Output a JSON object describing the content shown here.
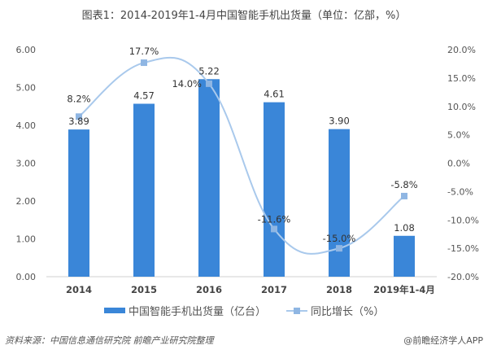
{
  "title": "图表1：2014-2019年1-4月中国智能手机出货量（单位：亿部，%）",
  "source": "资料来源：中国信息通信研究院 前瞻产业研究院整理",
  "credit": "@前瞻经济学人APP",
  "colors": {
    "bar": "#3a86d8",
    "line": "#a9c9ec",
    "marker": "#8fb6e3"
  },
  "chart_data": {
    "type": "bar+line",
    "categories": [
      "2014",
      "2015",
      "2016",
      "2017",
      "2018",
      "2019年1-4月"
    ],
    "series": [
      {
        "name": "中国智能手机出货量（亿台）",
        "type": "bar",
        "axis": "left",
        "values": [
          3.89,
          4.57,
          5.22,
          4.61,
          3.9,
          1.08
        ],
        "labels": [
          "3.89",
          "4.57",
          "5.22",
          "4.61",
          "3.90",
          "1.08"
        ]
      },
      {
        "name": "同比增长（%）",
        "type": "line",
        "axis": "right",
        "smooth": true,
        "values": [
          8.2,
          17.7,
          14.0,
          -11.6,
          -15.0,
          -5.8
        ],
        "labels": [
          "8.2%",
          "17.7%",
          "14.0%",
          "-11.6%",
          "-15.0%",
          "-5.8%"
        ]
      }
    ],
    "y_left": {
      "range": [
        0,
        6
      ],
      "ticks": [
        "0.00",
        "1.00",
        "2.00",
        "3.00",
        "4.00",
        "5.00",
        "6.00"
      ]
    },
    "y_right": {
      "range": [
        -20,
        20
      ],
      "ticks": [
        "-20.0%",
        "-15.0%",
        "-10.0%",
        "-5.0%",
        "0.0%",
        "5.0%",
        "10.0%",
        "15.0%",
        "20.0%"
      ]
    },
    "grid": false,
    "legend": "bottom"
  }
}
